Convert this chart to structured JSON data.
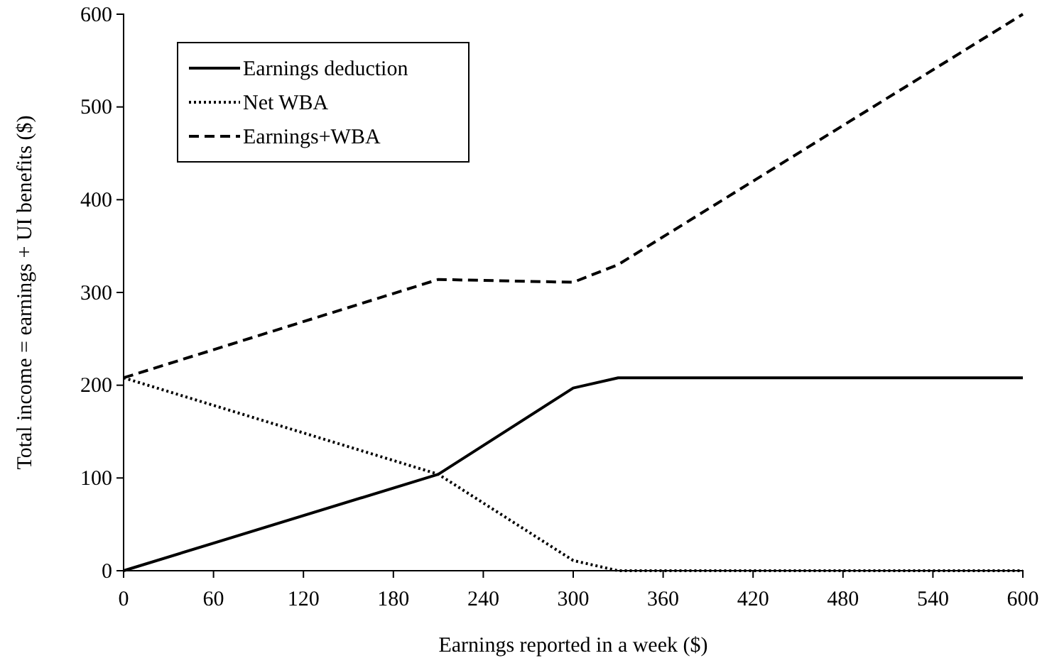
{
  "chart_data": {
    "type": "line",
    "xlabel": "Earnings reported in a week ($)",
    "ylabel": "Total income = earnings + UI benefits ($)",
    "x": [
      0,
      210,
      300,
      330,
      600
    ],
    "series": [
      {
        "name": "Earnings deduction",
        "color": "#000000",
        "line_style": "solid",
        "values": [
          0,
          104,
          197,
          208,
          208
        ]
      },
      {
        "name": "Net WBA",
        "color": "#000000",
        "line_style": "dotted",
        "values": [
          208,
          104,
          11,
          0,
          0
        ]
      },
      {
        "name": "Earnings+WBA",
        "color": "#000000",
        "line_style": "dashed",
        "values": [
          208,
          314,
          311,
          330,
          600
        ]
      }
    ],
    "xlim": [
      0,
      600
    ],
    "xticks": [
      0,
      60,
      120,
      180,
      240,
      300,
      360,
      420,
      480,
      540,
      600
    ],
    "ylim": [
      0,
      600
    ],
    "yticks": [
      0,
      100,
      200,
      300,
      400,
      500,
      600
    ],
    "grid": false,
    "legend": "top left",
    "marker": "none"
  }
}
